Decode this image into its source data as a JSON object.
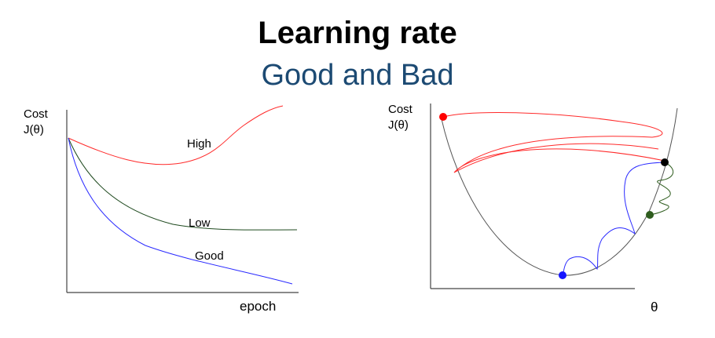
{
  "header": {
    "title": "Learning rate",
    "subtitle": "Good and Bad"
  },
  "left_plot": {
    "y_label_line1": "Cost",
    "y_label_line2": "J(θ)",
    "x_label": "epoch",
    "curves": [
      {
        "label": "High",
        "color": "#ff2a2a"
      },
      {
        "label": "Low",
        "color": "#1f4a1f"
      },
      {
        "label": "Good",
        "color": "#2a2aff"
      }
    ]
  },
  "right_plot": {
    "y_label_line1": "Cost",
    "y_label_line2": "J(θ)",
    "x_label": "θ",
    "points": [
      {
        "name": "start",
        "color": "#ff0000"
      },
      {
        "name": "high-lr",
        "color": "#000000"
      },
      {
        "name": "low-lr",
        "color": "#2e5c1e"
      },
      {
        "name": "good-lr",
        "color": "#1515ff"
      }
    ]
  }
}
